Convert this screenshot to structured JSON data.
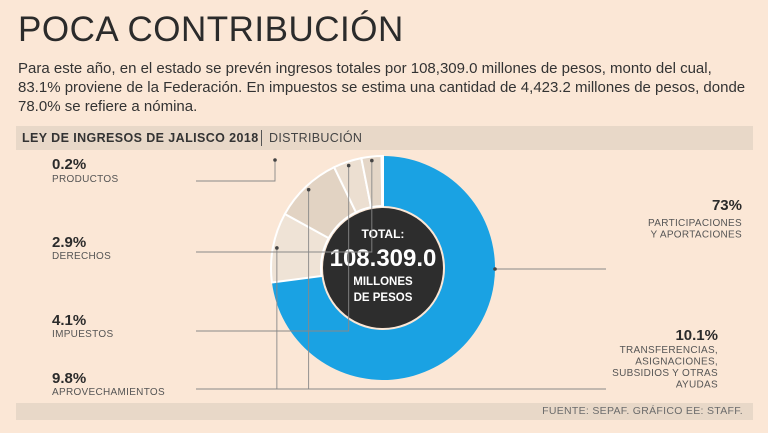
{
  "header": {
    "title": "POCA CONTRIBUCIÓN",
    "intro": "Para este año, en el estado se prevén ingresos totales por 108,309.0 millones de pesos, monto del cual, 83.1% proviene de la Federación. En impuestos se estima una cantidad de 4,423.2 millones de pesos, donde 78.0% se refiere a nómina."
  },
  "band": {
    "title": "LEY DE INGRESOS DE JALISCO 2018",
    "subtitle": "DISTRIBUCIÓN"
  },
  "footer": {
    "source": "FUENTE: SEPAF. GRÁFICO EE: STAFF."
  },
  "chart_data": {
    "type": "pie",
    "title": "LEY DE INGRESOS DE JALISCO 2018",
    "subtitle": "DISTRIBUCIÓN",
    "center": {
      "line1": "TOTAL:",
      "value": "108.309.0",
      "line2": "MILLONES",
      "line3": "DE PESOS"
    },
    "slices": [
      {
        "label": "PARTICIPACIONES Y APORTACIONES",
        "value": 73,
        "pct_text": "73%",
        "label_lines": [
          "PARTICIPACIONES",
          "Y APORTACIONES"
        ],
        "color": "#1aa2e3"
      },
      {
        "label": "TRANSFERENCIAS, ASIGNACIONES, SUBSIDIOS Y OTRAS AYUDAS",
        "value": 10.1,
        "pct_text": "10.1%",
        "label_lines": [
          "TRANSFERENCIAS,",
          "ASIGNACIONES,",
          "SUBSIDIOS Y OTRAS",
          "AYUDAS"
        ],
        "color": "#efe3d6"
      },
      {
        "label": "APROVECHAMIENTOS",
        "value": 9.8,
        "pct_text": "9.8%",
        "label_lines": [
          "APROVECHAMIENTOS"
        ],
        "color": "#e2d3c3"
      },
      {
        "label": "IMPUESTOS",
        "value": 4.1,
        "pct_text": "4.1%",
        "label_lines": [
          "IMPUESTOS"
        ],
        "color": "#ecdfd1"
      },
      {
        "label": "DERECHOS",
        "value": 2.9,
        "pct_text": "2.9%",
        "label_lines": [
          "DERECHOS"
        ],
        "color": "#e4d6c7"
      },
      {
        "label": "PRODUCTOS",
        "value": 0.2,
        "pct_text": "0.2%",
        "label_lines": [
          "PRODUCTOS"
        ],
        "color": "#eadccd"
      }
    ]
  }
}
